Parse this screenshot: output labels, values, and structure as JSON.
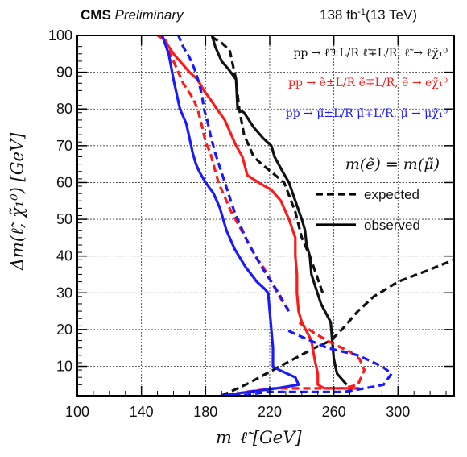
{
  "header": {
    "experiment": "CMS",
    "status": "Preliminary",
    "lumi_value": "138 fb",
    "lumi_exp": "-1",
    "energy": "(13 TeV)"
  },
  "chart_data": {
    "type": "line",
    "xlabel": "m_ℓ̃ [GeV]",
    "ylabel": "Δm(ℓ̃, χ̃₁⁰) [GeV]",
    "xlim": [
      100,
      335
    ],
    "ylim": [
      2,
      100
    ],
    "xticks": [
      100,
      140,
      180,
      220,
      260,
      300
    ],
    "yticks": [
      10,
      20,
      30,
      40,
      50,
      60,
      70,
      80,
      90,
      100
    ],
    "grid": true,
    "legend_position": "right",
    "process_labels": [
      {
        "text": "pp → ℓ̃±L/R ℓ̃∓L/R, ℓ̃ → ℓχ̃₁⁰",
        "color": "#111111"
      },
      {
        "text": "pp → ẽ±L/R ẽ∓L/R, ẽ → eχ̃₁⁰",
        "color": "#ff1a1a"
      },
      {
        "text": "pp → μ̃±L/R μ̃∓L/R, μ̃ → μχ̃₁⁰",
        "color": "#1a1aff"
      }
    ],
    "mass_condition": "m(ẽ) = m(μ̃)",
    "legend": [
      {
        "label": "expected",
        "style": "dashed"
      },
      {
        "label": "observed",
        "style": "solid"
      }
    ],
    "series": [
      {
        "group": "slepton",
        "kind": "expected",
        "color": "#111111",
        "x": [
          190,
          205,
          235,
          248,
          258,
          265,
          275,
          285,
          300,
          318,
          335
        ],
        "y": [
          2,
          5,
          12,
          15,
          17,
          20,
          25,
          29,
          33,
          36,
          39
        ]
      },
      {
        "group": "slepton",
        "kind": "expected",
        "color": "#111111",
        "x": [
          253,
          245,
          240,
          236,
          229,
          215,
          210,
          204,
          201,
          200,
          199,
          198,
          197,
          195,
          190,
          186,
          183
        ],
        "y": [
          30,
          40,
          45,
          52,
          60,
          65,
          67,
          73,
          80,
          84,
          88,
          90,
          92,
          96,
          98,
          99,
          100
        ]
      },
      {
        "group": "slepton",
        "kind": "observed",
        "color": "#111111",
        "x": [
          268,
          262,
          260,
          259,
          258,
          252,
          249,
          246,
          245,
          243,
          242,
          240,
          236,
          232,
          228,
          223,
          221,
          216,
          210,
          204,
          200,
          199,
          194,
          190,
          186,
          184
        ],
        "y": [
          5,
          8,
          12,
          17,
          22,
          27,
          31,
          35,
          40,
          43,
          47,
          50,
          55,
          60,
          63,
          67,
          70,
          72,
          75,
          79,
          80,
          88,
          91,
          93,
          97,
          100
        ]
      },
      {
        "group": "selectron",
        "kind": "expected",
        "color": "#ff1a1a",
        "x": [
          232,
          226,
          221,
          216,
          211,
          205,
          196,
          188,
          183,
          180,
          178,
          175,
          172,
          166,
          162,
          158,
          155
        ],
        "y": [
          25,
          29,
          33,
          37,
          40,
          45,
          52,
          60,
          68,
          71,
          75,
          80,
          83,
          87,
          91,
          95,
          99
        ]
      },
      {
        "group": "selectron",
        "kind": "expected",
        "color": "#ff1a1a",
        "x": [
          192,
          205,
          222,
          240,
          254,
          266,
          275,
          277,
          279,
          276,
          270,
          260,
          248,
          238
        ],
        "y": [
          2,
          3,
          4,
          4,
          4,
          4,
          5,
          7,
          9,
          12,
          14,
          16,
          19,
          22
        ]
      },
      {
        "group": "selectron",
        "kind": "observed",
        "color": "#ff1a1a",
        "x": [
          276,
          266,
          254,
          250,
          250,
          248,
          246,
          240,
          238,
          237,
          237,
          236,
          236,
          232,
          227,
          221,
          213,
          206,
          203,
          199,
          196,
          192,
          187,
          184,
          179,
          175,
          170,
          164,
          160,
          157,
          154,
          150
        ],
        "y": [
          4,
          4,
          4,
          5,
          8,
          12,
          17,
          22,
          25,
          30,
          35,
          40,
          45,
          50,
          55,
          58,
          60,
          62,
          67,
          70,
          73,
          77,
          80,
          82,
          85,
          88,
          90,
          93,
          95,
          97,
          99,
          100
        ]
      },
      {
        "group": "smuon",
        "kind": "expected",
        "color": "#1a1aff",
        "x": [
          232,
          224,
          215,
          206,
          198,
          192,
          186,
          183,
          181,
          179,
          178,
          176,
          173,
          170,
          166,
          163
        ],
        "y": [
          25,
          31,
          37,
          44,
          52,
          60,
          68,
          73,
          77,
          80,
          83,
          87,
          91,
          94,
          97,
          100
        ]
      },
      {
        "group": "smuon",
        "kind": "expected",
        "color": "#1a1aff",
        "x": [
          190,
          202,
          218,
          236,
          252,
          266,
          279,
          291,
          296,
          290,
          275,
          256,
          240,
          230
        ],
        "y": [
          2,
          2,
          3,
          3,
          3,
          3,
          4,
          5,
          8,
          10,
          13,
          15,
          18,
          20
        ]
      },
      {
        "group": "smuon",
        "kind": "observed",
        "color": "#1a1aff",
        "x": [
          191,
          206,
          224,
          238,
          236,
          226,
          222,
          222,
          221,
          220,
          219,
          217,
          212,
          205,
          198,
          193,
          189,
          185,
          180,
          176,
          174,
          172,
          170,
          168,
          164,
          160,
          157,
          153
        ],
        "y": [
          2,
          3,
          4,
          5,
          7,
          9,
          10,
          15,
          20,
          25,
          30,
          31,
          33,
          37,
          42,
          47,
          53,
          57,
          60,
          63,
          65,
          68,
          72,
          76,
          80,
          88,
          95,
          100
        ]
      }
    ]
  }
}
